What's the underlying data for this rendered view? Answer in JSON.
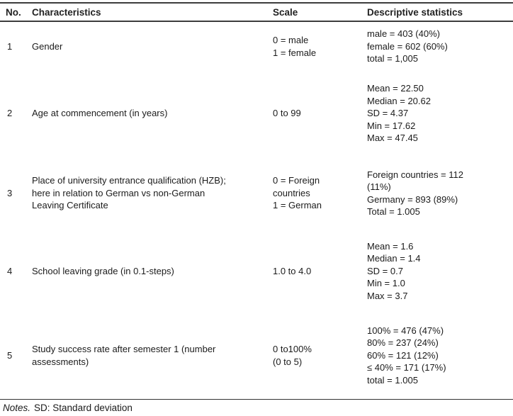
{
  "table": {
    "columns": [
      "No.",
      "Characteristics",
      "Scale",
      "Descriptive statistics"
    ],
    "rows": [
      {
        "no": "1",
        "characteristic": "Gender",
        "scale": "0 = male\n1 = female",
        "stats": "male = 403 (40%)\nfemale = 602 (60%)\ntotal = 1,005"
      },
      {
        "no": "2",
        "characteristic": "Age at commencement (in years)",
        "scale": "0 to 99",
        "stats": "Mean = 22.50\nMedian = 20.62\nSD = 4.37\nMin = 17.62\nMax = 47.45"
      },
      {
        "no": "3",
        "characteristic": "Place of university entrance qualification (HZB);\nhere in relation to German vs non-German\nLeaving Certificate",
        "scale": "0 = Foreign\ncountries\n1 = German",
        "stats": "Foreign countries = 112\n(11%)\nGermany = 893 (89%)\nTotal = 1.005"
      },
      {
        "no": "4",
        "characteristic": "School leaving grade (in 0.1-steps)",
        "scale": "1.0 to 4.0",
        "stats": "Mean = 1.6\nMedian = 1.4\nSD = 0.7\nMin = 1.0\nMax = 3.7"
      },
      {
        "no": "5",
        "characteristic": "Study success rate after semester 1 (number\nassessments)",
        "scale": "0 to100%\n(0 to 5)",
        "stats": "100% = 476 (47%)\n80% = 237 (24%)\n60% = 121 (12%)\n≤ 40% = 171 (17%)\ntotal = 1.005"
      }
    ]
  },
  "notes": {
    "label": "Notes.",
    "text": "SD: Standard deviation"
  }
}
